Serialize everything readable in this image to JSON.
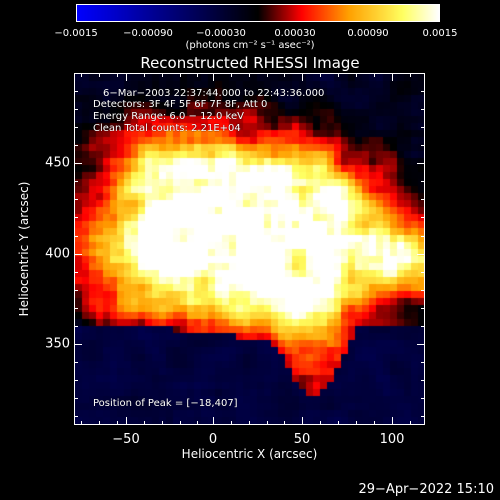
{
  "title": "Reconstructed RHESSI Image",
  "colorbar": {
    "ticks": [
      "−0.0015",
      "−0.00090",
      "−0.00030",
      "0.00030",
      "0.00090",
      "0.0015"
    ],
    "units": "(photons cm⁻² s⁻¹ asec⁻²)",
    "range": [
      -0.0015,
      0.0015
    ],
    "colors": [
      "#0000ff",
      "#000000",
      "#ff0000",
      "#ffa000",
      "#ffff60",
      "#ffffff"
    ]
  },
  "info": {
    "time": "6−Mar−2003 22:37:44.000 to 22:43:36.000",
    "detectors": "Detectors: 3F 4F 5F 6F 7F 8F, Att 0",
    "energy": "Energy Range: 6.0 − 12.0 keV",
    "clean": "Clean    Total counts: 2.21E+04",
    "peak": "Position of Peak = [−18,407]"
  },
  "axes": {
    "xlabel": "Heliocentric X (arcsec)",
    "ylabel": "Heliocentric Y (arcsec)",
    "xticks": [
      "−50",
      "0",
      "50",
      "100"
    ],
    "yticks": [
      "450",
      "400",
      "350"
    ],
    "xrange": [
      -80,
      115
    ],
    "yrange": [
      305,
      500
    ]
  },
  "timestamp": "29−Apr−2022 15:10"
}
